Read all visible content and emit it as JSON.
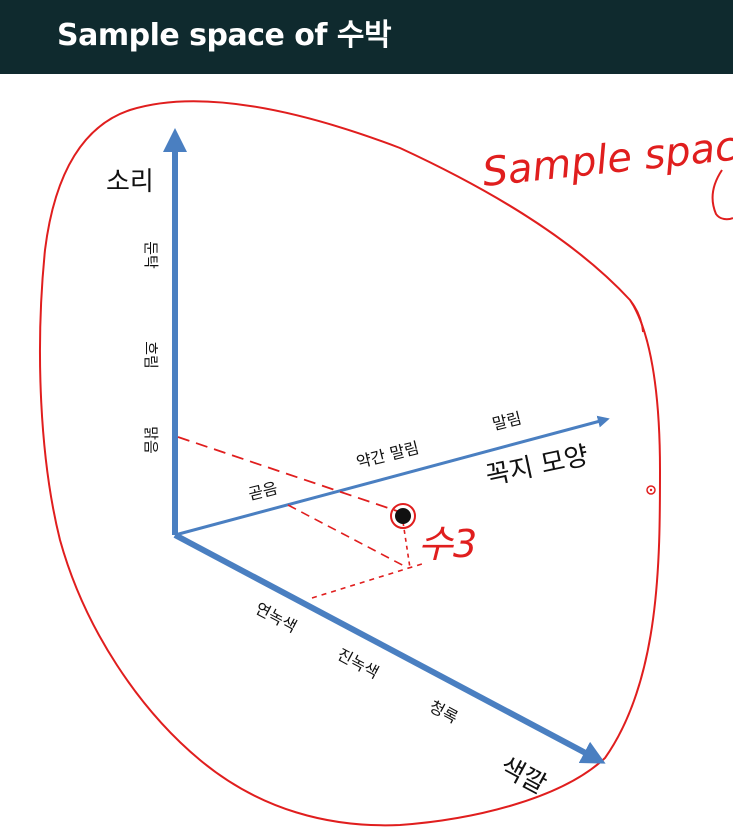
{
  "header": {
    "title": "Sample space of 수박"
  },
  "diagram": {
    "axes": {
      "sound": {
        "title": "소리",
        "ticks": [
          "맑음",
          "흐림",
          "둔탁"
        ]
      },
      "stem": {
        "title": "꼭지 모양",
        "ticks": [
          "곧음",
          "약간 말림",
          "말림"
        ]
      },
      "color": {
        "title": "색깔",
        "ticks": [
          "연녹색",
          "진녹색",
          "청록"
        ]
      }
    },
    "annotations": {
      "sample_space": "Sample space",
      "point_label": "수3"
    },
    "colors": {
      "axis": "#4a7fc1",
      "ink": "#e01e1e",
      "header_bg": "#0f2a2e"
    }
  }
}
